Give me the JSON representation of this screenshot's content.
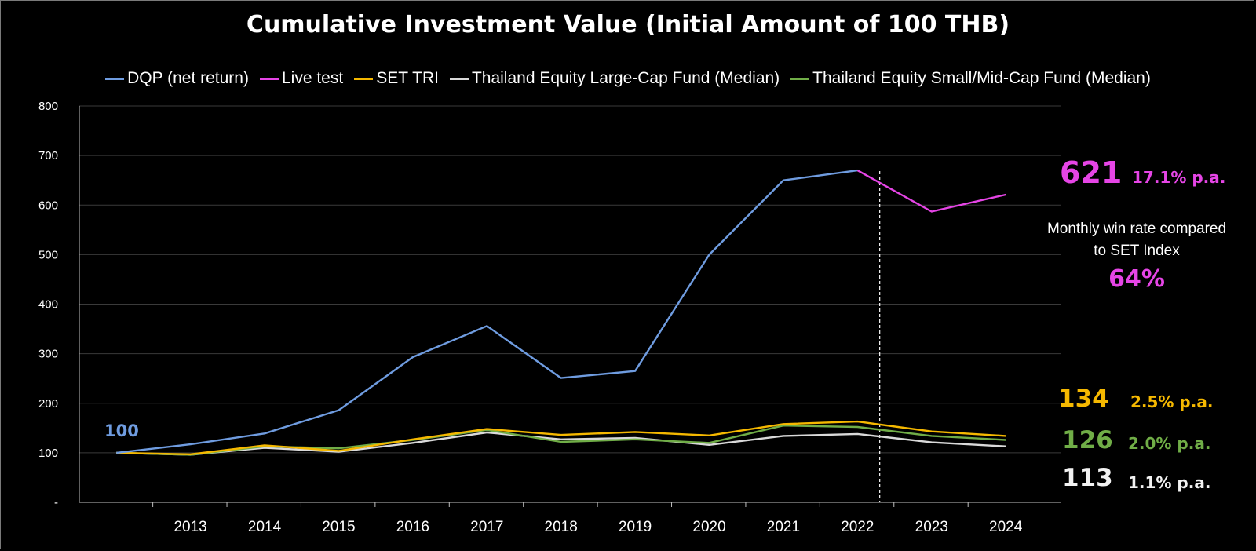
{
  "chart_data": {
    "type": "line",
    "title": "Cumulative Investment Value (Initial Amount of 100 THB)",
    "xlabel": "",
    "ylabel": "",
    "x": [
      2012,
      2013,
      2014,
      2015,
      2016,
      2017,
      2018,
      2019,
      2020,
      2021,
      2022,
      2023,
      2024
    ],
    "x_tick_labels": [
      "2013",
      "2014",
      "2015",
      "2016",
      "2017",
      "2018",
      "2019",
      "2020",
      "2021",
      "2022",
      "2023",
      "2024"
    ],
    "x_tick_values": [
      2013,
      2014,
      2015,
      2016,
      2017,
      2018,
      2019,
      2020,
      2021,
      2022,
      2023,
      2024
    ],
    "y_tick_labels": [
      "-",
      "100",
      "200",
      "300",
      "400",
      "500",
      "600",
      "700",
      "800"
    ],
    "ylim": [
      0,
      800
    ],
    "grid": true,
    "legend_position": "top",
    "live_test_start": 2022.3,
    "series": [
      {
        "name": "DQP (net return)",
        "color": "#6f9ce0",
        "x": [
          2012,
          2013,
          2014,
          2015,
          2016,
          2017,
          2018,
          2019,
          2020,
          2021,
          2022
        ],
        "values": [
          100,
          117,
          139,
          186,
          293,
          356,
          251,
          265,
          500,
          650,
          670
        ]
      },
      {
        "name": "Live test",
        "color": "#e645e6",
        "x": [
          2022,
          2023,
          2024
        ],
        "values": [
          670,
          587,
          621
        ]
      },
      {
        "name": "SET TRI",
        "color": "#f5b800",
        "x": [
          2012,
          2013,
          2014,
          2015,
          2016,
          2017,
          2018,
          2019,
          2020,
          2021,
          2022,
          2023,
          2024
        ],
        "values": [
          100,
          97,
          115,
          104,
          127,
          148,
          136,
          142,
          135,
          158,
          163,
          143,
          134
        ]
      },
      {
        "name": "Thailand Equity Large-Cap Fund (Median)",
        "color": "#d9d9d9",
        "x": [
          2012,
          2013,
          2014,
          2015,
          2016,
          2017,
          2018,
          2019,
          2020,
          2021,
          2022,
          2023,
          2024
        ],
        "values": [
          100,
          96,
          110,
          102,
          120,
          141,
          127,
          130,
          116,
          134,
          138,
          121,
          113
        ]
      },
      {
        "name": "Thailand Equity Small/Mid-Cap Fund (Median)",
        "color": "#70ad47",
        "x": [
          2012,
          2013,
          2014,
          2015,
          2016,
          2017,
          2018,
          2019,
          2020,
          2021,
          2022,
          2023,
          2024
        ],
        "values": [
          100,
          96,
          113,
          109,
          126,
          146,
          122,
          127,
          120,
          155,
          152,
          134,
          126
        ]
      }
    ],
    "annotations": {
      "start_label": {
        "text": "100",
        "color": "#6f9ce0"
      },
      "dqp_final": {
        "value": "621",
        "rate": "17.1% p.a.",
        "color": "#e645e6"
      },
      "win_rate_caption_line1": "Monthly win rate compared",
      "win_rate_caption_line2": "to SET Index",
      "win_rate_value": "64%",
      "set_final": {
        "value": "134",
        "rate": "2.5% p.a.",
        "color": "#f5b800"
      },
      "smallmid_final": {
        "value": "126",
        "rate": "2.0% p.a.",
        "color": "#70ad47"
      },
      "largecap_final": {
        "value": "113",
        "rate": "1.1% p.a.",
        "color": "#f2f2f2"
      }
    }
  }
}
